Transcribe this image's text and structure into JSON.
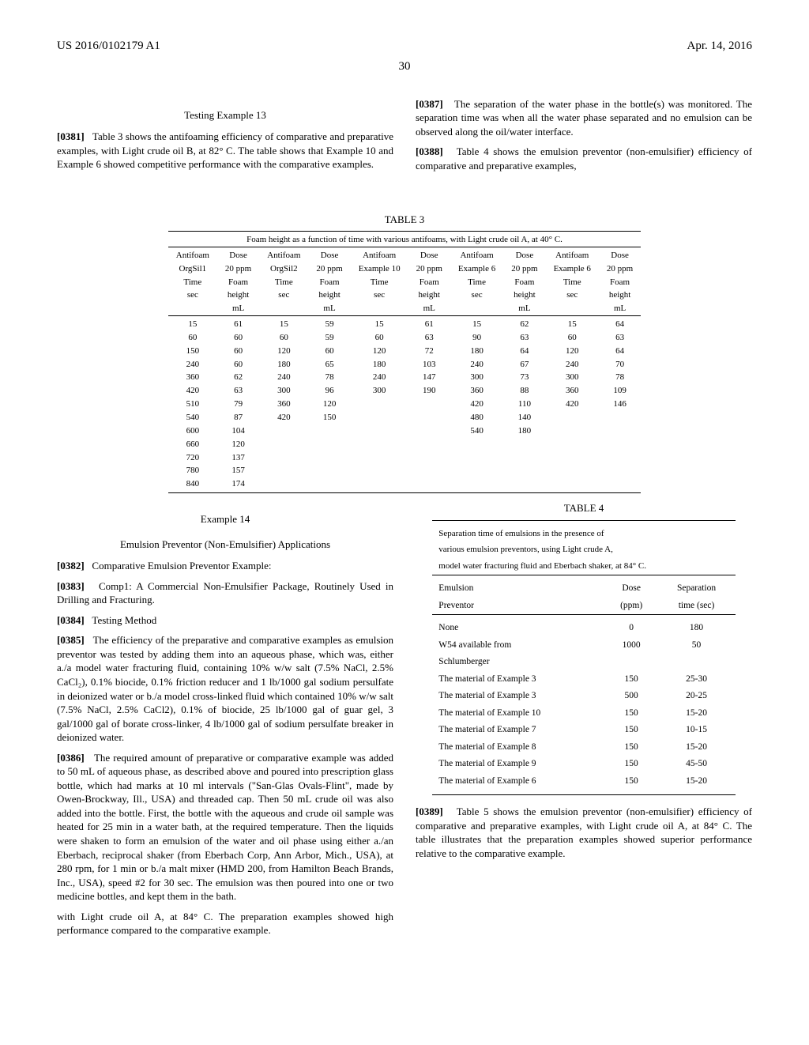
{
  "header": {
    "left": "US 2016/0102179 A1",
    "right": "Apr. 14, 2016",
    "page": "30"
  },
  "left_col": {
    "testing_ex_heading": "Testing Example 13",
    "p0381_num": "[0381]",
    "p0381_text": "Table 3 shows the antifoaming efficiency of comparative and preparative examples, with Light crude oil B, at 82° C. The table shows that Example 10 and Example 6 showed competitive performance with the comparative examples.",
    "ex14_heading": "Example 14",
    "ex14_sub": "Emulsion Preventor (Non-Emulsifier) Applications",
    "p0382_num": "[0382]",
    "p0382_text": "Comparative Emulsion Preventor Example:",
    "p0383_num": "[0383]",
    "p0383_text": "Comp1: A Commercial Non-Emulsifier Package, Routinely Used in Drilling and Fracturing.",
    "p0384_num": "[0384]",
    "p0384_text": "Testing Method",
    "p0385_num": "[0385]",
    "p0385_text": "The efficiency of the preparative and comparative examples as emulsion preventor was tested by adding them into an aqueous phase, which was, either a./a model water fracturing fluid, containing 10% w/w salt (7.5% NaCl, 2.5% CaCl₂), 0.1% biocide, 0.1% friction reducer and 1 lb/1000 gal sodium persulfate in deionized water or b./a model cross-linked fluid which contained 10% w/w salt (7.5% NaCl, 2.5% CaCl2), 0.1% of biocide, 25 lb/1000 gal of guar gel, 3 gal/1000 gal of borate cross-linker, 4 lb/1000 gal of sodium persulfate breaker in deionized water.",
    "p0386_num": "[0386]",
    "p0386_text": "The required amount of preparative or comparative example was added to 50 mL of aqueous phase, as described above and poured into prescription glass bottle, which had marks at 10 ml intervals (\"San-Glas Ovals-Flint\", made by Owen-Brockway, Ill., USA) and threaded cap. Then 50 mL crude oil was also added into the bottle. First, the bottle with the aqueous and crude oil sample was heated for 25 min in a water bath, at the required temperature. Then the liquids were shaken to form an emulsion of the water and oil phase using either a./an Eberbach, reciprocal shaker (from Eberbach Corp, Ann Arbor, Mich., USA), at 280 rpm, for 1 min or b./a malt mixer (HMD 200, from Hamilton Beach Brands, Inc., USA), speed #2 for 30 sec. The emulsion was then poured into one or two medicine bottles, and kept them in the bath."
  },
  "right_col": {
    "p0387_num": "[0387]",
    "p0387_text": "The separation of the water phase in the bottle(s) was monitored. The separation time was when all the water phase separated and no emulsion can be observed along the oil/water interface.",
    "p0388_num": "[0388]",
    "p0388_text": "Table 4 shows the emulsion preventor (non-emulsifier) efficiency of comparative and preparative examples,",
    "p_cont_text": "with Light crude oil A, at 84° C. The preparation examples showed high performance compared to the comparative example.",
    "table4_label": "TABLE 4",
    "table4_title1": "Separation time of emulsions in the presence of",
    "table4_title2": "various emulsion preventors, using Light crude A,",
    "table4_title3": "model water fracturing fluid and Eberbach shaker, at 84° C.",
    "table4_head1a": "Emulsion",
    "table4_head1b": "Preventor",
    "table4_head2a": "Dose",
    "table4_head2b": "(ppm)",
    "table4_head3a": "Separation",
    "table4_head3b": "time (sec)",
    "table4_rows": [
      [
        "None",
        "0",
        "180"
      ],
      [
        "W54 available from",
        "1000",
        "50"
      ],
      [
        "Schlumberger",
        "",
        ""
      ],
      [
        "The material of Example 3",
        "150",
        "25-30"
      ],
      [
        "The material of Example 3",
        "500",
        "20-25"
      ],
      [
        "The material of Example 10",
        "150",
        "15-20"
      ],
      [
        "The material of Example 7",
        "150",
        "10-15"
      ],
      [
        "The material of Example 8",
        "150",
        "15-20"
      ],
      [
        "The material of Example 9",
        "150",
        "45-50"
      ],
      [
        "The material of Example 6",
        "150",
        "15-20"
      ]
    ],
    "p0389_num": "[0389]",
    "p0389_text": "Table 5 shows the emulsion preventor (non-emulsifier) efficiency of comparative and preparative examples, with Light crude oil A, at 84° C. The table illustrates that the preparation examples showed superior performance relative to the comparative example."
  },
  "table3": {
    "label": "TABLE 3",
    "title": "Foam height as a function of time with various antifoams, with Light crude oil A, at 40° C.",
    "headers": [
      [
        "Antifoam",
        "Dose",
        "Antifoam",
        "Dose",
        "Antifoam",
        "Dose",
        "Antifoam",
        "Dose",
        "Antifoam",
        "Dose"
      ],
      [
        "OrgSil1",
        "20 ppm",
        "OrgSil2",
        "20 ppm",
        "Example 10",
        "20 ppm",
        "Example 6",
        "20 ppm",
        "Example 6",
        "20 ppm"
      ],
      [
        "Time",
        "Foam",
        "Time",
        "Foam",
        "Time",
        "Foam",
        "Time",
        "Foam",
        "Time",
        "Foam"
      ],
      [
        "sec",
        "height",
        "sec",
        "height",
        "sec",
        "height",
        "sec",
        "height",
        "sec",
        "height"
      ],
      [
        "",
        "mL",
        "",
        "mL",
        "",
        "mL",
        "",
        "mL",
        "",
        "mL"
      ]
    ],
    "rows": [
      [
        "15",
        "61",
        "15",
        "59",
        "15",
        "61",
        "15",
        "62",
        "15",
        "64"
      ],
      [
        "60",
        "60",
        "60",
        "59",
        "60",
        "63",
        "90",
        "63",
        "60",
        "63"
      ],
      [
        "150",
        "60",
        "120",
        "60",
        "120",
        "72",
        "180",
        "64",
        "120",
        "64"
      ],
      [
        "240",
        "60",
        "180",
        "65",
        "180",
        "103",
        "240",
        "67",
        "240",
        "70"
      ],
      [
        "360",
        "62",
        "240",
        "78",
        "240",
        "147",
        "300",
        "73",
        "300",
        "78"
      ],
      [
        "420",
        "63",
        "300",
        "96",
        "300",
        "190",
        "360",
        "88",
        "360",
        "109"
      ],
      [
        "510",
        "79",
        "360",
        "120",
        "",
        "",
        "420",
        "110",
        "420",
        "146"
      ],
      [
        "540",
        "87",
        "420",
        "150",
        "",
        "",
        "480",
        "140",
        "",
        ""
      ],
      [
        "600",
        "104",
        "",
        "",
        "",
        "",
        "540",
        "180",
        "",
        ""
      ],
      [
        "660",
        "120",
        "",
        "",
        "",
        "",
        "",
        "",
        "",
        ""
      ],
      [
        "720",
        "137",
        "",
        "",
        "",
        "",
        "",
        "",
        "",
        ""
      ],
      [
        "780",
        "157",
        "",
        "",
        "",
        "",
        "",
        "",
        "",
        ""
      ],
      [
        "840",
        "174",
        "",
        "",
        "",
        "",
        "",
        "",
        "",
        ""
      ]
    ]
  }
}
